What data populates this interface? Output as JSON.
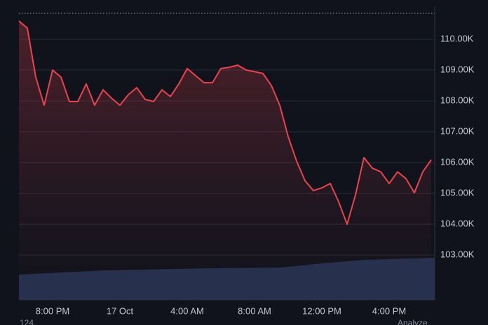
{
  "chart_data": {
    "type": "line",
    "categories": [
      null,
      null,
      null,
      null,
      "8:00 PM",
      null,
      null,
      null,
      null,
      null,
      null,
      null,
      "17 Oct",
      null,
      null,
      null,
      null,
      null,
      null,
      null,
      "4:00 AM",
      null,
      null,
      null,
      null,
      null,
      null,
      null,
      "8:00 AM",
      null,
      null,
      null,
      null,
      null,
      null,
      null,
      "12:00 PM",
      null,
      null,
      null,
      null,
      null,
      null,
      null,
      "4:00 PM",
      null,
      null,
      null,
      null,
      null
    ],
    "series": [
      {
        "color": "#e8434f",
        "values": [
          110590,
          110360,
          108770,
          107860,
          109000,
          108770,
          107980,
          107980,
          108550,
          107860,
          108360,
          108090,
          107860,
          108200,
          108430,
          108050,
          107980,
          108360,
          108140,
          108550,
          109050,
          108820,
          108590,
          108590,
          109050,
          109090,
          109160,
          109000,
          108950,
          108890,
          108500,
          107860,
          106840,
          106050,
          105410,
          105090,
          105180,
          105320,
          104730,
          104000,
          104950,
          106160,
          105820,
          105700,
          105320,
          105700,
          105480,
          105020,
          105700,
          106090
        ]
      }
    ],
    "ylim": [
      101550,
      111000
    ],
    "yticks": [
      {
        "value": 103000,
        "label": "103.00K"
      },
      {
        "value": 104000,
        "label": "104.00K"
      },
      {
        "value": 105000,
        "label": "105.00K"
      },
      {
        "value": 106000,
        "label": "106.00K"
      },
      {
        "value": 107000,
        "label": "107.00K"
      },
      {
        "value": 108000,
        "label": "108.00K"
      },
      {
        "value": 109000,
        "label": "109.00K"
      },
      {
        "value": 110000,
        "label": "110.00K"
      }
    ],
    "grid": true,
    "footer_left": "124",
    "footer_right": "Analyze"
  }
}
